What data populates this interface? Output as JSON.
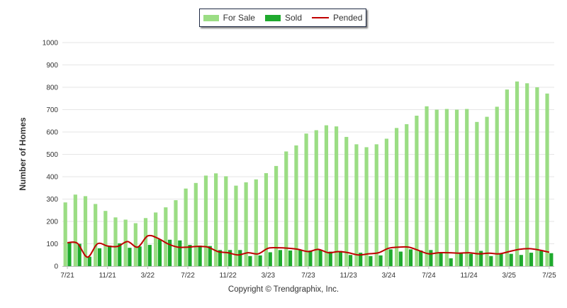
{
  "legend": {
    "for_sale": "For Sale",
    "sold": "Sold",
    "pended": "Pended"
  },
  "colors": {
    "for_sale": "#9bdd84",
    "sold": "#1faa2e",
    "pended": "#c00000",
    "grid": "#e6e6e6"
  },
  "copyright": "Copyright © Trendgraphix, Inc.",
  "chart_data": {
    "type": "bar",
    "title": "",
    "ylabel": "Number of Homes",
    "xlabel": "",
    "ylim": [
      0,
      1000
    ],
    "yticks": [
      0,
      100,
      200,
      300,
      400,
      500,
      600,
      700,
      800,
      900,
      1000
    ],
    "grid": true,
    "legend_position": "top-center",
    "x_tick_labels": [
      {
        "index": 0,
        "label": "7/21"
      },
      {
        "index": 4,
        "label": "11/21"
      },
      {
        "index": 8,
        "label": "3/22"
      },
      {
        "index": 12,
        "label": "7/22"
      },
      {
        "index": 16,
        "label": "11/22"
      },
      {
        "index": 20,
        "label": "3/23"
      },
      {
        "index": 24,
        "label": "7/23"
      },
      {
        "index": 28,
        "label": "11/23"
      },
      {
        "index": 32,
        "label": "3/24"
      },
      {
        "index": 36,
        "label": "7/24"
      },
      {
        "index": 40,
        "label": "11/24"
      },
      {
        "index": 44,
        "label": "3/25"
      },
      {
        "index": 48,
        "label": "7/25"
      }
    ],
    "categories": [
      "7/21",
      "8/21",
      "9/21",
      "10/21",
      "11/21",
      "12/21",
      "1/22",
      "2/22",
      "3/22",
      "4/22",
      "5/22",
      "6/22",
      "7/22",
      "8/22",
      "9/22",
      "10/22",
      "11/22",
      "12/22",
      "1/23",
      "2/23",
      "3/23",
      "4/23",
      "5/23",
      "6/23",
      "7/23",
      "8/23",
      "9/23",
      "10/23",
      "11/23",
      "12/23",
      "1/24",
      "2/24",
      "3/24",
      "4/24",
      "5/24",
      "6/24",
      "7/24",
      "8/24",
      "9/24",
      "10/24",
      "11/24",
      "12/24",
      "1/25",
      "2/25",
      "3/25",
      "4/25",
      "5/25",
      "6/25",
      "7/25"
    ],
    "series": [
      {
        "name": "For Sale",
        "kind": "bar",
        "values": [
          285,
          320,
          313,
          278,
          247,
          218,
          208,
          192,
          215,
          240,
          263,
          295,
          347,
          372,
          405,
          415,
          402,
          360,
          375,
          388,
          416,
          448,
          513,
          540,
          593,
          608,
          630,
          625,
          578,
          545,
          532,
          545,
          570,
          618,
          635,
          673,
          715,
          700,
          703,
          700,
          703,
          645,
          668,
          713,
          790,
          826,
          818,
          800,
          772
        ]
      },
      {
        "name": "Sold",
        "kind": "bar",
        "values": [
          105,
          100,
          42,
          80,
          92,
          102,
          82,
          88,
          95,
          120,
          118,
          115,
          95,
          92,
          90,
          72,
          72,
          72,
          45,
          48,
          62,
          72,
          70,
          72,
          70,
          72,
          65,
          68,
          50,
          60,
          45,
          48,
          75,
          65,
          75,
          70,
          72,
          60,
          35,
          60,
          55,
          68,
          45,
          55,
          55,
          50,
          60,
          68,
          58
        ]
      },
      {
        "name": "Pended",
        "kind": "line",
        "values": [
          105,
          102,
          40,
          100,
          90,
          88,
          110,
          85,
          135,
          125,
          100,
          85,
          85,
          88,
          85,
          65,
          60,
          50,
          60,
          55,
          80,
          82,
          80,
          75,
          65,
          75,
          60,
          65,
          60,
          50,
          55,
          60,
          80,
          85,
          85,
          70,
          55,
          60,
          60,
          58,
          60,
          55,
          58,
          55,
          65,
          75,
          78,
          72,
          62
        ]
      }
    ]
  }
}
